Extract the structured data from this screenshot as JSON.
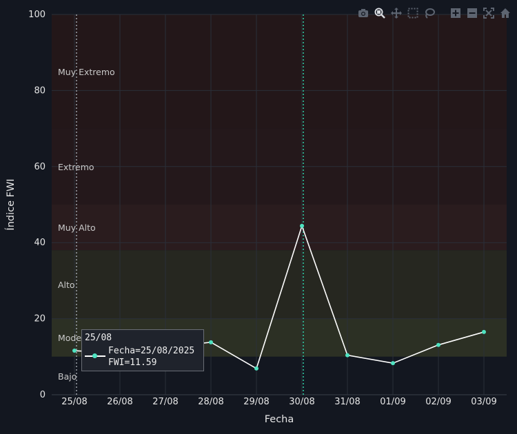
{
  "toolbar": {
    "buttons": [
      {
        "name": "camera-icon"
      },
      {
        "name": "zoom-icon"
      },
      {
        "name": "pan-icon"
      },
      {
        "name": "box-select-icon"
      },
      {
        "name": "lasso-icon"
      },
      {
        "name": "zoom-in-icon"
      },
      {
        "name": "zoom-out-icon"
      },
      {
        "name": "autoscale-icon"
      },
      {
        "name": "home-icon"
      }
    ]
  },
  "tooltip": {
    "title": "25/08",
    "line1": "Fecha=25/08/2025",
    "line2": "FWI=11.59"
  },
  "chart_data": {
    "type": "line",
    "title": "",
    "xlabel": "Fecha",
    "ylabel": "Índice FWI",
    "ylim": [
      0,
      100
    ],
    "yticks": [
      0,
      20,
      40,
      60,
      80,
      100
    ],
    "categories": [
      "25/08",
      "26/08",
      "27/08",
      "28/08",
      "29/08",
      "30/08",
      "31/08",
      "01/09",
      "02/09",
      "03/09"
    ],
    "series": [
      {
        "values": [
          11.59,
          10.9,
          12.5,
          13.8,
          6.9,
          44.4,
          10.4,
          8.3,
          13.1,
          16.5
        ],
        "color": "#ffffff",
        "marker_color": "#4fe3c1"
      }
    ],
    "bands": [
      {
        "label": "Muy Extremo",
        "from": 70,
        "to": 100,
        "color": "#231719"
      },
      {
        "label": "Extremo",
        "from": 50,
        "to": 70,
        "color": "#24181b"
      },
      {
        "label": "Muy Alto",
        "from": 38,
        "to": 50,
        "color": "#2a1c1e"
      },
      {
        "label": "Alto",
        "from": 20,
        "to": 38,
        "color": "#262720"
      },
      {
        "label": "Moderado",
        "from": 10,
        "to": 20,
        "color": "#2c3024"
      },
      {
        "label": "Bajo",
        "from": 0,
        "to": 10,
        "color": "#131720"
      }
    ],
    "vlines": [
      {
        "category": "25/08",
        "color": "#9ea3ab"
      },
      {
        "category": "30/08",
        "color": "#2fd3a8"
      }
    ],
    "grid": true
  }
}
